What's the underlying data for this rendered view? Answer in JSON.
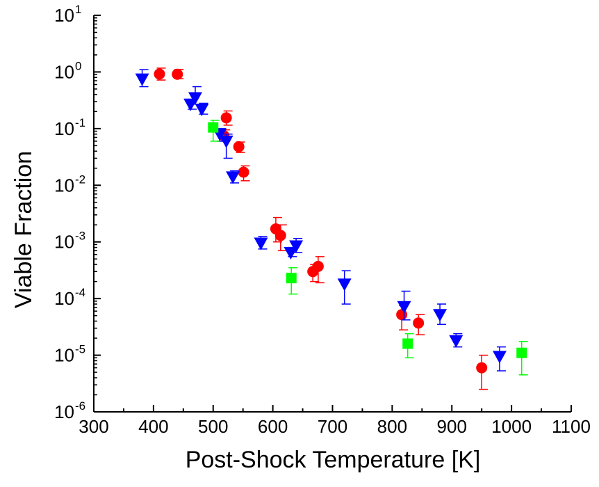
{
  "chart_data": {
    "type": "scatter",
    "title": "",
    "xlabel": "Post-Shock Temperature [K]",
    "ylabel": "Viable Fraction",
    "xlim": [
      300,
      1100
    ],
    "xticks": [
      "300",
      "400",
      "500",
      "600",
      "700",
      "800",
      "900",
      "1000",
      "1100"
    ],
    "ylim": [
      1e-06,
      10
    ],
    "yscale": "log",
    "ytick_base": "10",
    "ytick_exponents": [
      "-6",
      "-5",
      "-4",
      "-3",
      "-2",
      "-1",
      "0",
      "1"
    ],
    "grid": false,
    "legend": false,
    "series": [
      {
        "marker": "circle",
        "color": "#ff0000",
        "points": [
          {
            "x": 410,
            "y": 0.92,
            "err_lo": 0.2,
            "err_hi": 0.25
          },
          {
            "x": 440,
            "y": 0.91,
            "err_lo": 0.15,
            "err_hi": 0.2
          },
          {
            "x": 518,
            "y": 0.075,
            "err_lo": 0.015,
            "err_hi": 0.02
          },
          {
            "x": 522,
            "y": 0.155,
            "err_lo": 0.04,
            "err_hi": 0.05
          },
          {
            "x": 543,
            "y": 0.048,
            "err_lo": 0.01,
            "err_hi": 0.01
          },
          {
            "x": 551,
            "y": 0.017,
            "err_lo": 0.005,
            "err_hi": 0.005
          },
          {
            "x": 605,
            "y": 0.0017,
            "err_lo": 0.0007,
            "err_hi": 0.001
          },
          {
            "x": 613,
            "y": 0.0013,
            "err_lo": 0.0006,
            "err_hi": 0.0007
          },
          {
            "x": 667,
            "y": 0.0003,
            "err_lo": 0.0001,
            "err_hi": 0.0001
          },
          {
            "x": 676,
            "y": 0.00037,
            "err_lo": 0.00018,
            "err_hi": 0.00018
          },
          {
            "x": 816,
            "y": 5.2e-05,
            "err_lo": 2.4e-05,
            "err_hi": 2.3e-05
          },
          {
            "x": 844,
            "y": 3.7e-05,
            "err_lo": 1.4e-05,
            "err_hi": 1.5e-05
          },
          {
            "x": 950,
            "y": 6e-06,
            "err_lo": 3.5e-06,
            "err_hi": 4e-06
          }
        ]
      },
      {
        "marker": "triangle-down",
        "color": "#0000ff",
        "points": [
          {
            "x": 381,
            "y": 0.75,
            "err_lo": 0.2,
            "err_hi": 0.35
          },
          {
            "x": 462,
            "y": 0.27,
            "err_lo": 0.05,
            "err_hi": 0.06
          },
          {
            "x": 470,
            "y": 0.35,
            "err_lo": 0.08,
            "err_hi": 0.2
          },
          {
            "x": 481,
            "y": 0.22,
            "err_lo": 0.04,
            "err_hi": 0.06
          },
          {
            "x": 511,
            "y": 0.08,
            "err_lo": 0.02,
            "err_hi": 0.02
          },
          {
            "x": 522,
            "y": 0.06,
            "err_lo": 0.03,
            "err_hi": 0.02
          },
          {
            "x": 533,
            "y": 0.014,
            "err_lo": 0.003,
            "err_hi": 0.004
          },
          {
            "x": 580,
            "y": 0.00095,
            "err_lo": 0.0002,
            "err_hi": 0.0003
          },
          {
            "x": 630,
            "y": 0.00065,
            "err_lo": 0.0001,
            "err_hi": 0.00015
          },
          {
            "x": 639,
            "y": 0.00085,
            "err_lo": 0.0002,
            "err_hi": 0.0003
          },
          {
            "x": 720,
            "y": 0.00018,
            "err_lo": 0.0001,
            "err_hi": 0.00013
          },
          {
            "x": 820,
            "y": 7.2e-05,
            "err_lo": 3e-05,
            "err_hi": 6.3e-05
          },
          {
            "x": 880,
            "y": 5.2e-05,
            "err_lo": 1.7e-05,
            "err_hi": 2.8e-05
          },
          {
            "x": 907,
            "y": 1.8e-05,
            "err_lo": 4e-06,
            "err_hi": 6e-06
          },
          {
            "x": 980,
            "y": 9.5e-06,
            "err_lo": 4.2e-06,
            "err_hi": 4.5e-06
          }
        ]
      },
      {
        "marker": "square",
        "color": "#00ff00",
        "points": [
          {
            "x": 500,
            "y": 0.105,
            "err_lo": 0.045,
            "err_hi": 0.035
          },
          {
            "x": 631,
            "y": 0.00023,
            "err_lo": 0.00011,
            "err_hi": 0.00012
          },
          {
            "x": 826,
            "y": 1.6e-05,
            "err_lo": 7e-06,
            "err_hi": 8e-06
          },
          {
            "x": 1017,
            "y": 1.1e-05,
            "err_lo": 6.5e-06,
            "err_hi": 6.5e-06
          }
        ]
      }
    ]
  }
}
